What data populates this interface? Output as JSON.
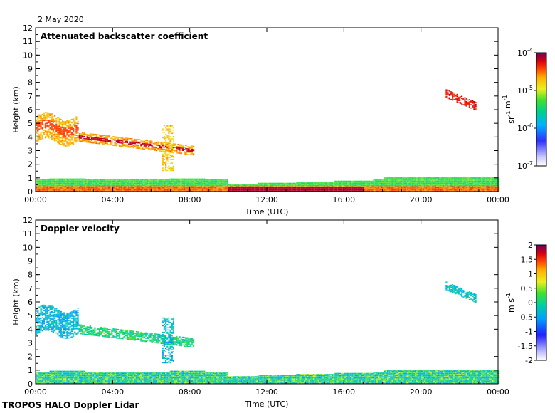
{
  "date_label": "2 May 2020",
  "footer_label": "TROPOS HALO Doppler Lidar",
  "chart_data": [
    {
      "type": "heatmap",
      "title": "Attenuated backscatter coefficient",
      "xlabel": "Time (UTC)",
      "ylabel": "Height (km)",
      "xlim": [
        0,
        24
      ],
      "ylim": [
        0,
        12
      ],
      "x_ticks": [
        "00:00",
        "04:00",
        "08:00",
        "12:00",
        "16:00",
        "20:00",
        "00:00"
      ],
      "y_ticks": [
        "0",
        "1",
        "2",
        "3",
        "4",
        "5",
        "6",
        "7",
        "8",
        "9",
        "10",
        "11",
        "12"
      ],
      "colorbar": {
        "scale": "log",
        "range": [
          1e-07,
          0.0001
        ],
        "unit_label": "sr-1 m-1",
        "tick_labels": [
          "10-7",
          "10-6",
          "10-5",
          "10-4"
        ]
      },
      "features": [
        {
          "name": "residual layer / elevated aerosol",
          "time_range": [
            0,
            2.2
          ],
          "height_range": [
            3.2,
            6.5
          ]
        },
        {
          "name": "descending aerosol layer",
          "time_range": [
            2.2,
            8.2
          ],
          "height_range": [
            2.6,
            4.5
          ]
        },
        {
          "name": "convective plume",
          "time_range": [
            6.5,
            7.2
          ],
          "height_range": [
            1.4,
            5.0
          ]
        },
        {
          "name": "boundary layer",
          "time_range": [
            0,
            24
          ],
          "height_range": [
            0,
            1.0
          ]
        },
        {
          "name": "elevated cloud",
          "time_range": [
            21.2,
            22.8
          ],
          "height_range": [
            5.8,
            7.8
          ]
        }
      ]
    },
    {
      "type": "heatmap",
      "title": "Doppler velocity",
      "xlabel": "Time (UTC)",
      "ylabel": "Height (km)",
      "xlim": [
        0,
        24
      ],
      "ylim": [
        0,
        12
      ],
      "x_ticks": [
        "00:00",
        "04:00",
        "08:00",
        "12:00",
        "16:00",
        "20:00",
        "00:00"
      ],
      "y_ticks": [
        "0",
        "1",
        "2",
        "3",
        "4",
        "5",
        "6",
        "7",
        "8",
        "9",
        "10",
        "11",
        "12"
      ],
      "colorbar": {
        "scale": "linear",
        "range": [
          -2,
          2
        ],
        "unit_label": "m s-1",
        "tick_labels": [
          "-2",
          "-1.5",
          "-1",
          "-0.5",
          "0",
          "0.5",
          "1",
          "1.5",
          "2"
        ]
      }
    }
  ]
}
